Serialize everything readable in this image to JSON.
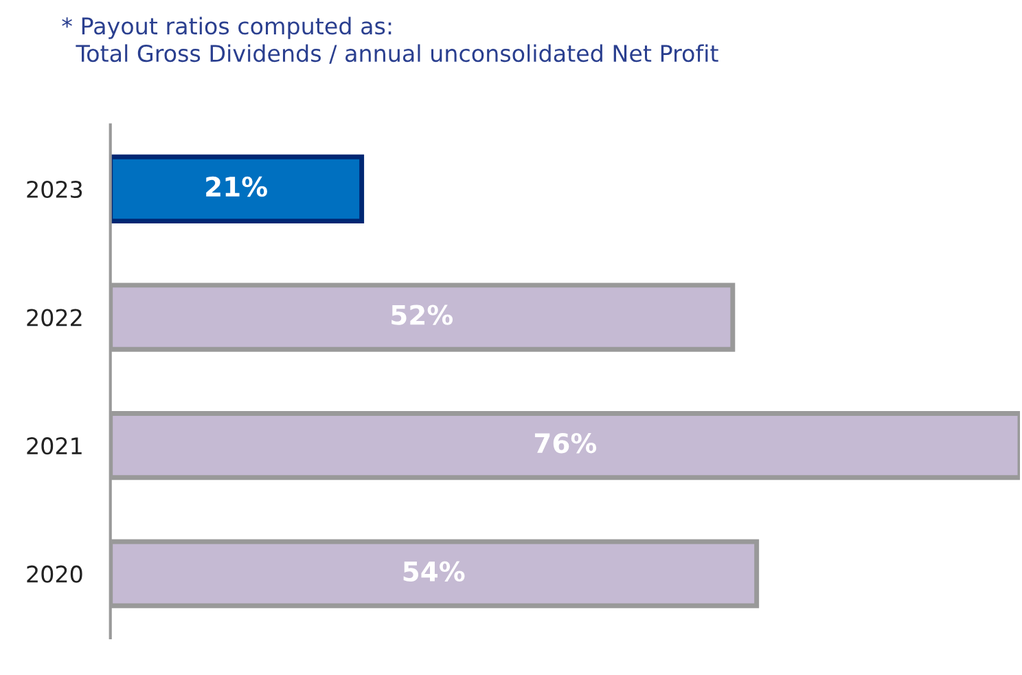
{
  "chart_data": {
    "type": "bar",
    "orientation": "horizontal",
    "categories": [
      "2023",
      "2022",
      "2021",
      "2020"
    ],
    "values": [
      21,
      52,
      76,
      54
    ],
    "value_labels": [
      "21%",
      "52%",
      "76%",
      "54%"
    ],
    "colors": [
      "#0070c0",
      "#c5bad3",
      "#c5bad3",
      "#c5bad3"
    ],
    "annotations": [
      "* Payout ratios computed as:\n  Total Gross Dividends / annual unconsolidated Net Profit"
    ],
    "grid": false,
    "legend": false
  }
}
